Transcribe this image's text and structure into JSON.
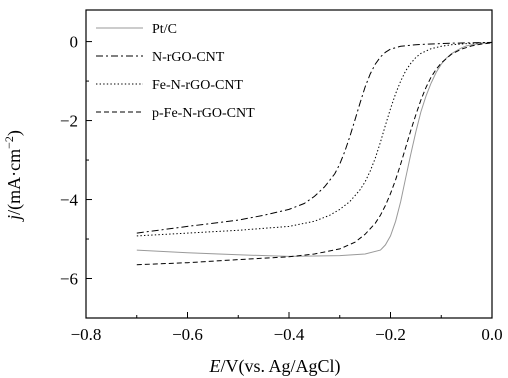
{
  "chart_data": {
    "type": "line",
    "xlabel": "E/V(vs. Ag/AgCl)",
    "xlabel_parts": {
      "var": "E",
      "rest": "/V(vs. Ag/AgCl)"
    },
    "ylabel": "j/(mA·cm⁻²)",
    "ylabel_parts": {
      "var": "j",
      "unit": "/(mA·cm",
      "exp": "−2",
      "close": ")"
    },
    "xlim": [
      -0.8,
      0.0
    ],
    "ylim": [
      -7,
      0.8
    ],
    "xticks": [
      -0.8,
      -0.6,
      -0.4,
      -0.2,
      0.0
    ],
    "xtick_labels": [
      "−0.8",
      "−0.6",
      "−0.4",
      "−0.2",
      "0.0"
    ],
    "yticks": [
      0,
      -2,
      -4,
      -6
    ],
    "ytick_labels": [
      "0",
      "−2",
      "−4",
      "−6"
    ],
    "grid": false,
    "legend_position": "top-left",
    "series": [
      {
        "name": "Pt/C",
        "style": "solid",
        "color": "#9a9a9a",
        "x": [
          -0.7,
          -0.6,
          -0.5,
          -0.4,
          -0.3,
          -0.25,
          -0.22,
          -0.21,
          -0.2,
          -0.19,
          -0.18,
          -0.17,
          -0.16,
          -0.15,
          -0.14,
          -0.13,
          -0.12,
          -0.11,
          -0.1,
          -0.09,
          -0.08,
          -0.07,
          -0.06,
          -0.05,
          -0.04,
          -0.03,
          -0.02,
          -0.01,
          0.0
        ],
        "y": [
          -5.28,
          -5.35,
          -5.4,
          -5.44,
          -5.42,
          -5.38,
          -5.28,
          -5.15,
          -4.92,
          -4.55,
          -4.05,
          -3.45,
          -2.85,
          -2.28,
          -1.78,
          -1.38,
          -1.05,
          -0.78,
          -0.57,
          -0.42,
          -0.31,
          -0.23,
          -0.16,
          -0.11,
          -0.08,
          -0.06,
          -0.04,
          -0.03,
          -0.02
        ]
      },
      {
        "name": "N-rGO-CNT",
        "style": "dashdot",
        "color": "#000000",
        "x": [
          -0.7,
          -0.6,
          -0.5,
          -0.45,
          -0.4,
          -0.37,
          -0.35,
          -0.33,
          -0.31,
          -0.3,
          -0.29,
          -0.28,
          -0.27,
          -0.26,
          -0.25,
          -0.24,
          -0.23,
          -0.22,
          -0.21,
          -0.2,
          -0.18,
          -0.15,
          -0.12,
          -0.08,
          -0.04,
          0.0
        ],
        "y": [
          -4.85,
          -4.68,
          -4.52,
          -4.4,
          -4.25,
          -4.1,
          -3.92,
          -3.68,
          -3.35,
          -3.1,
          -2.78,
          -2.4,
          -1.98,
          -1.55,
          -1.15,
          -0.82,
          -0.57,
          -0.39,
          -0.27,
          -0.19,
          -0.12,
          -0.08,
          -0.06,
          -0.04,
          -0.03,
          -0.02
        ]
      },
      {
        "name": "Fe-N-rGO-CNT",
        "style": "dotted",
        "color": "#000000",
        "x": [
          -0.7,
          -0.6,
          -0.5,
          -0.4,
          -0.35,
          -0.32,
          -0.3,
          -0.28,
          -0.26,
          -0.25,
          -0.24,
          -0.23,
          -0.22,
          -0.21,
          -0.2,
          -0.19,
          -0.18,
          -0.17,
          -0.16,
          -0.15,
          -0.14,
          -0.12,
          -0.1,
          -0.08,
          -0.05,
          -0.02,
          0.0
        ],
        "y": [
          -4.92,
          -4.85,
          -4.78,
          -4.68,
          -4.55,
          -4.4,
          -4.25,
          -4.05,
          -3.75,
          -3.55,
          -3.28,
          -2.95,
          -2.55,
          -2.12,
          -1.7,
          -1.32,
          -1.0,
          -0.74,
          -0.55,
          -0.4,
          -0.3,
          -0.18,
          -0.12,
          -0.08,
          -0.05,
          -0.03,
          -0.02
        ]
      },
      {
        "name": "p-Fe-N-rGO-CNT",
        "style": "dashed",
        "color": "#000000",
        "x": [
          -0.7,
          -0.6,
          -0.5,
          -0.4,
          -0.35,
          -0.3,
          -0.27,
          -0.25,
          -0.23,
          -0.22,
          -0.21,
          -0.2,
          -0.19,
          -0.18,
          -0.17,
          -0.16,
          -0.15,
          -0.14,
          -0.13,
          -0.12,
          -0.11,
          -0.1,
          -0.08,
          -0.06,
          -0.04,
          -0.02,
          0.0
        ],
        "y": [
          -5.65,
          -5.6,
          -5.52,
          -5.45,
          -5.38,
          -5.25,
          -5.08,
          -4.88,
          -4.6,
          -4.4,
          -4.15,
          -3.85,
          -3.5,
          -3.1,
          -2.68,
          -2.25,
          -1.85,
          -1.48,
          -1.16,
          -0.9,
          -0.7,
          -0.54,
          -0.32,
          -0.19,
          -0.11,
          -0.06,
          -0.03
        ]
      }
    ]
  }
}
